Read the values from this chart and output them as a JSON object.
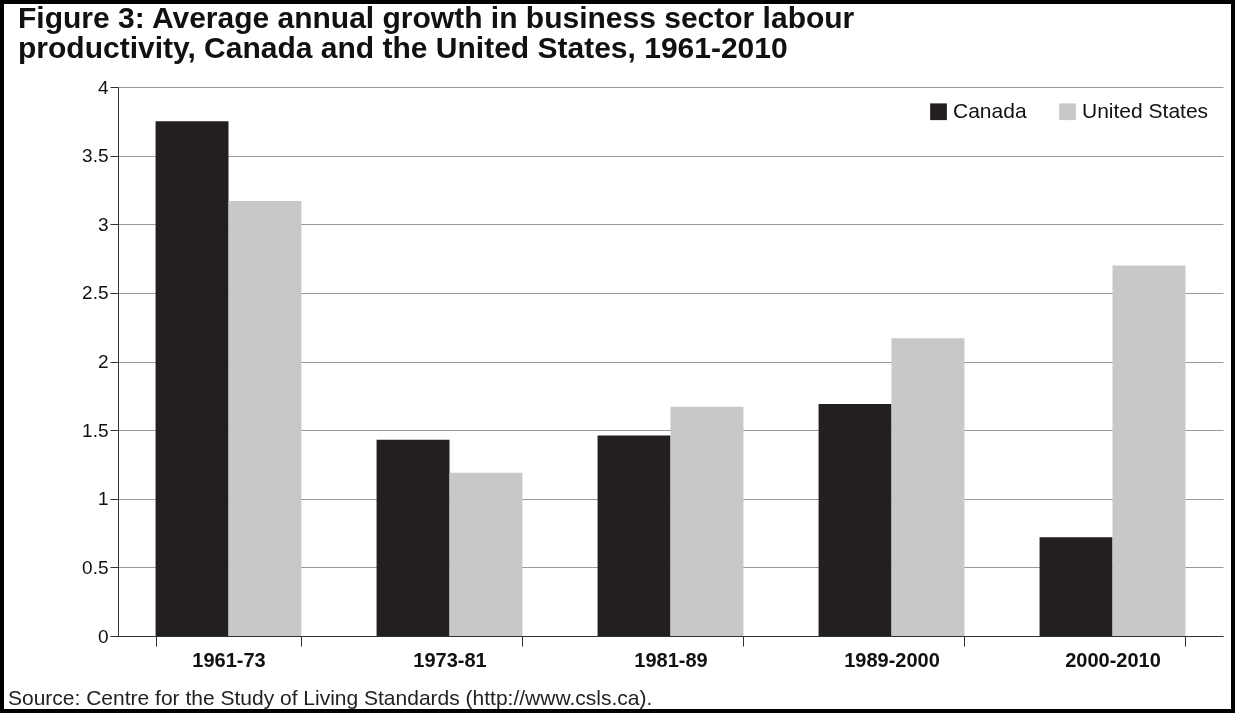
{
  "chart_data": {
    "type": "bar",
    "title": "Figure 3: Average annual growth in business sector labour productivity, Canada and the United States, 1961-2010",
    "categories": [
      "1961-73",
      "1973-81",
      "1981-89",
      "1989-2000",
      "2000-2010"
    ],
    "series": [
      {
        "name": "Canada",
        "color": "#231f20",
        "values": [
          3.75,
          1.43,
          1.46,
          1.69,
          0.72
        ]
      },
      {
        "name": "United States",
        "color": "#c8c8ca",
        "values": [
          3.17,
          1.19,
          1.67,
          2.17,
          2.7
        ]
      }
    ],
    "ylim": [
      0,
      4
    ],
    "yticks": [
      0,
      0.5,
      1,
      1.5,
      2,
      2.5,
      3,
      3.5,
      4
    ],
    "grid": "y",
    "legend": "top right",
    "annotations": [
      "Source: Centre for the Study of Living Standards (http://www.csls.ca)."
    ]
  }
}
